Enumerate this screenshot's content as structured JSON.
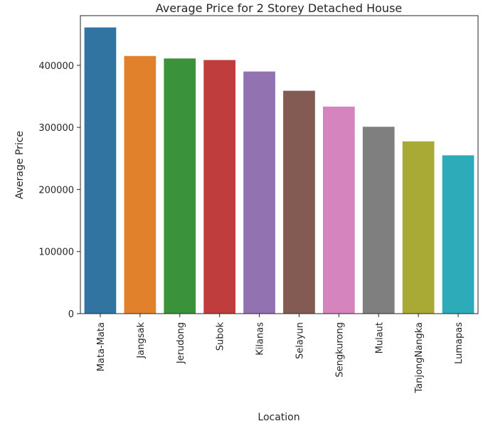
{
  "chart_data": {
    "type": "bar",
    "title": "Average Price for 2 Storey Detached House",
    "xlabel": "Location",
    "ylabel": "Average Price",
    "categories": [
      "Mata-Mata",
      "Jangsak",
      "Jerudong",
      "Subok",
      "Kilanas",
      "Selayun",
      "Sengkurong",
      "Mulaut",
      "TanjongNangka",
      "Lumapas"
    ],
    "values": [
      461000,
      415000,
      411000,
      408500,
      390000,
      359000,
      333500,
      301000,
      277500,
      255000
    ],
    "colors": [
      "#3274a1",
      "#e1812c",
      "#3a923a",
      "#c03d3e",
      "#9372b2",
      "#845b53",
      "#d684bd",
      "#7f7f7f",
      "#a9aa35",
      "#2eabb8"
    ],
    "ylim": [
      0,
      480000
    ],
    "yticks": [
      "0",
      "100000",
      "200000",
      "300000",
      "400000"
    ],
    "ytick_values": [
      0,
      100000,
      200000,
      300000,
      400000
    ],
    "grid": false,
    "legend": "none"
  }
}
